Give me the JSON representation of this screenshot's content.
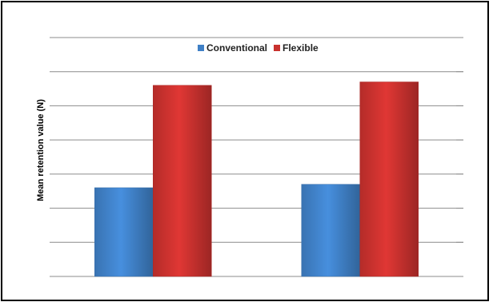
{
  "chart_data": {
    "type": "bar",
    "categories": [
      "",
      ""
    ],
    "series": [
      {
        "name": "Conventional",
        "values": [
          26,
          27
        ],
        "color": "#3f80c6"
      },
      {
        "name": "Flexible",
        "values": [
          56,
          57
        ],
        "color": "#c8312e"
      }
    ],
    "xlabel": "",
    "ylabel": "Mean retention value (N)",
    "ylim": [
      0,
      70
    ],
    "gridlines": [
      0,
      10,
      20,
      30,
      40,
      50,
      60,
      70
    ],
    "grid": true,
    "legend_position": "top"
  }
}
